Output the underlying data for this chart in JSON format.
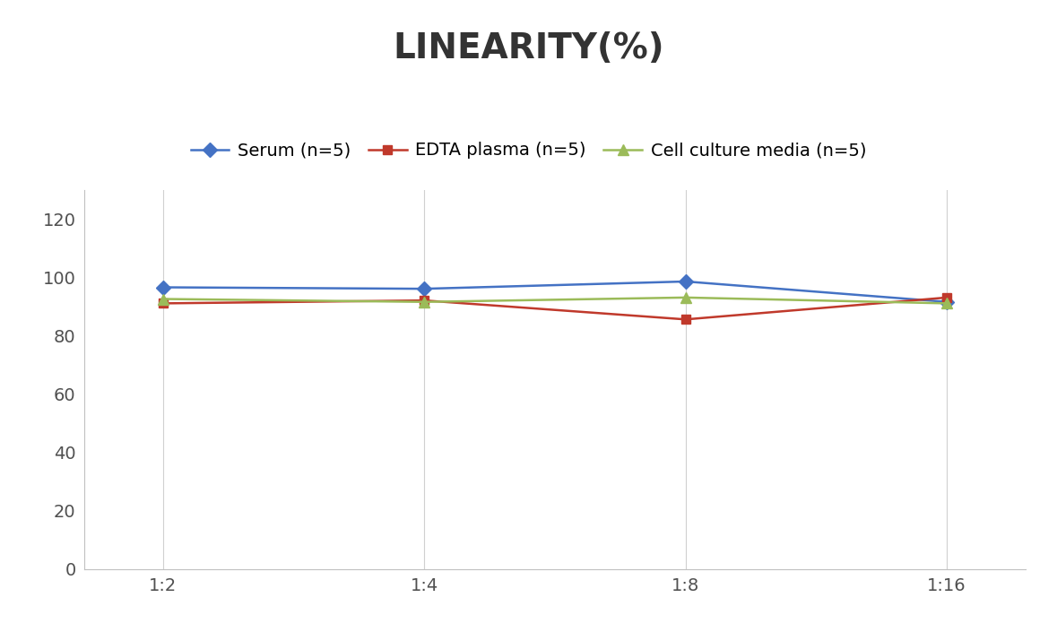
{
  "title": "LINEARITY(%)",
  "title_fontsize": 28,
  "title_fontweight": "bold",
  "x_labels": [
    "1:2",
    "1:4",
    "1:8",
    "1:16"
  ],
  "x_values": [
    0,
    1,
    2,
    3
  ],
  "series": [
    {
      "label": "Serum (n=5)",
      "values": [
        96.5,
        96.0,
        98.5,
        91.5
      ],
      "color": "#4472C4",
      "marker": "D",
      "markersize": 8,
      "linewidth": 1.8
    },
    {
      "label": "EDTA plasma (n=5)",
      "values": [
        91.0,
        92.0,
        85.5,
        93.0
      ],
      "color": "#C0392B",
      "marker": "s",
      "markersize": 7,
      "linewidth": 1.8
    },
    {
      "label": "Cell culture media (n=5)",
      "values": [
        92.5,
        91.5,
        93.0,
        91.0
      ],
      "color": "#9BBB59",
      "marker": "^",
      "markersize": 8,
      "linewidth": 1.8
    }
  ],
  "ylim": [
    0,
    130
  ],
  "yticks": [
    0,
    20,
    40,
    60,
    80,
    100,
    120
  ],
  "background_color": "#ffffff",
  "grid_color": "#d0d0d0",
  "legend_fontsize": 14,
  "tick_fontsize": 14,
  "axis_label_color": "#505050"
}
